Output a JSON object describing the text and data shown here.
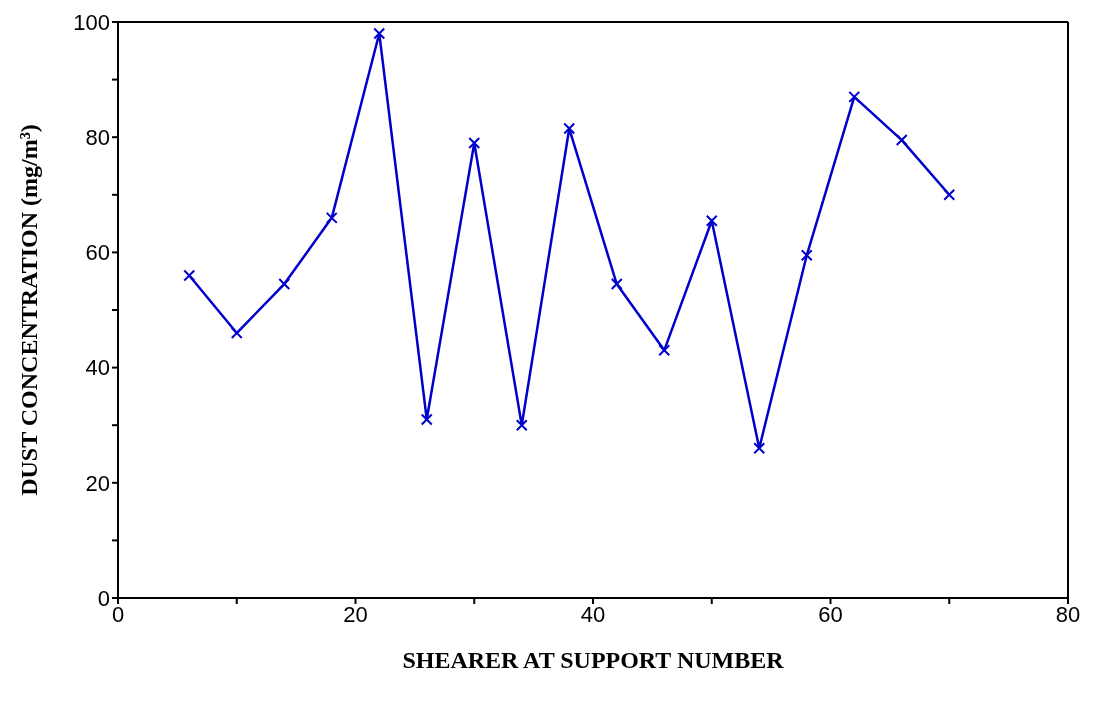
{
  "chart_data": {
    "type": "line",
    "xlabel": "SHEARER AT SUPPORT NUMBER",
    "ylabel": "DUST CONCENTRATION (mg/m³)",
    "x": [
      6,
      10,
      14,
      18,
      22,
      26,
      30,
      34,
      38,
      42,
      46,
      50,
      54,
      58,
      62,
      66,
      70
    ],
    "series": [
      {
        "color": "#0000cc",
        "values": [
          56,
          46,
          54.5,
          66,
          98,
          31,
          79,
          30,
          81.5,
          54.5,
          43,
          65.5,
          26,
          59.5,
          87,
          79.5,
          70
        ]
      }
    ],
    "xlim": [
      0,
      80
    ],
    "xticks": [
      0,
      {
        "value": 10,
        "label": null
      },
      20,
      {
        "value": 30,
        "label": null
      },
      40,
      {
        "value": 50,
        "label": null
      },
      60,
      {
        "value": 70,
        "label": null
      },
      80
    ],
    "ylim": [
      0,
      100
    ],
    "yticks": [
      0,
      {
        "value": 10,
        "label": null
      },
      20,
      {
        "value": 30,
        "label": null
      },
      40,
      {
        "value": 50,
        "label": null
      },
      60,
      {
        "value": 70,
        "label": null
      },
      80,
      {
        "value": 90,
        "label": null
      },
      100
    ],
    "grid": false,
    "legend": false,
    "marker": "cross",
    "line_style": "solid"
  }
}
